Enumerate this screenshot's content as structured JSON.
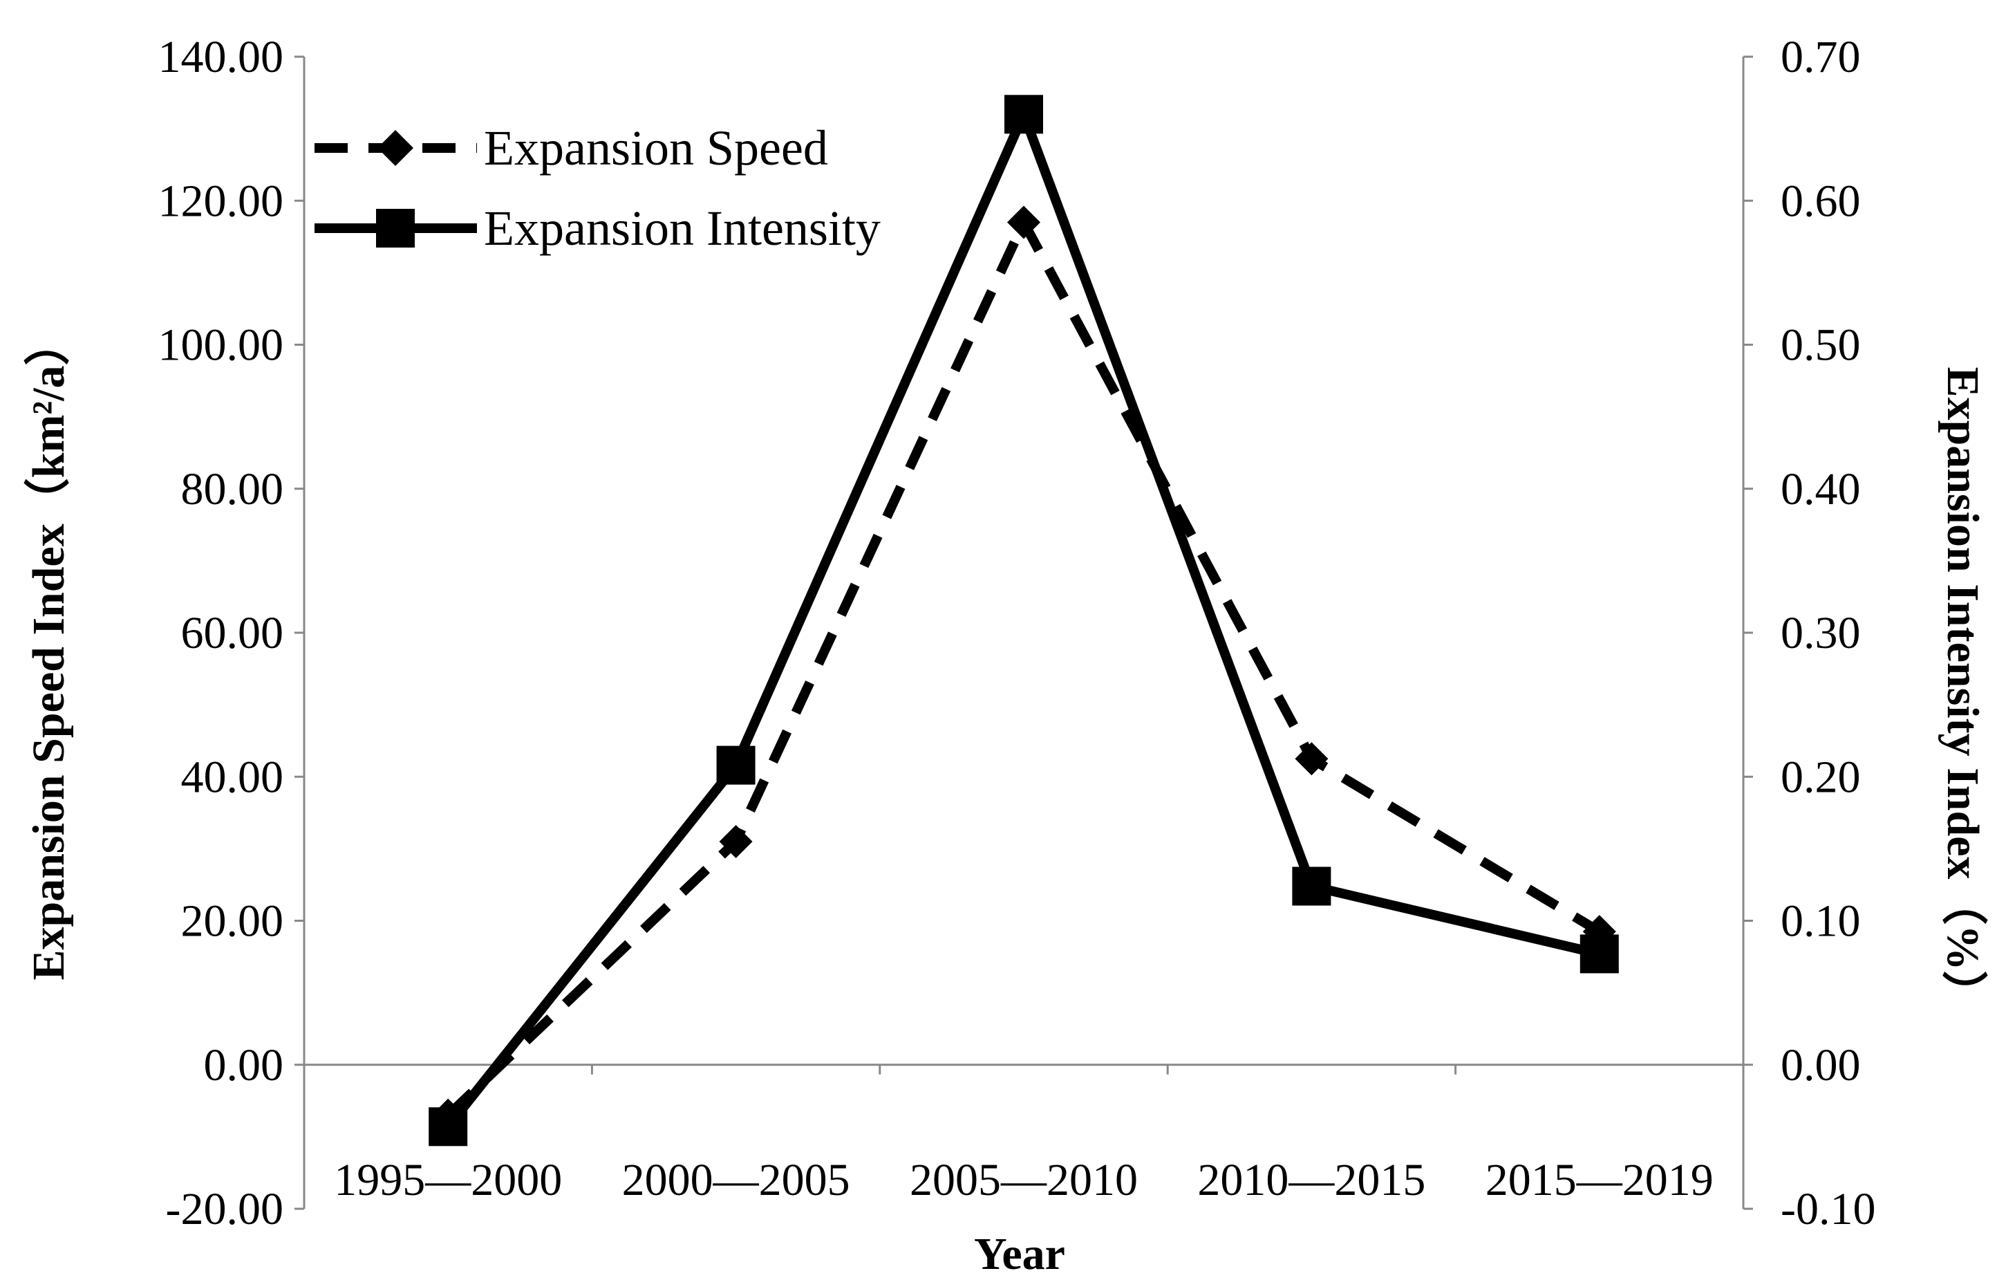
{
  "chart_data": {
    "type": "line",
    "categories": [
      "1995—2000",
      "2000—2005",
      "2005—2010",
      "2010—2015",
      "2015—2019"
    ],
    "series": [
      {
        "name": "Expansion Speed",
        "axis": "left",
        "style": "dashed",
        "marker": "diamond",
        "values": [
          -7.0,
          31.0,
          117.0,
          42.5,
          18.5
        ]
      },
      {
        "name": "Expansion Intensity",
        "axis": "right",
        "style": "solid",
        "marker": "square",
        "values": [
          -0.043,
          0.208,
          0.66,
          0.124,
          0.077
        ]
      }
    ],
    "xlabel": "Year",
    "ylabel_left": "Expansion Speed Index（km²/a）",
    "ylabel_right": "Expansion Intensity Index（%）",
    "ylim_left": [
      -20,
      140
    ],
    "ylim_right": [
      -0.1,
      0.7
    ],
    "yticks_left": [
      "-20.00",
      "0.00",
      "20.00",
      "40.00",
      "60.00",
      "80.00",
      "100.00",
      "120.00",
      "140.00"
    ],
    "yticks_right": [
      "-0.10",
      "0.00",
      "0.10",
      "0.20",
      "0.30",
      "0.40",
      "0.50",
      "0.60",
      "0.70"
    ],
    "legend_position": "top-left",
    "line_color": "#000000",
    "axis_color": "#888888"
  }
}
